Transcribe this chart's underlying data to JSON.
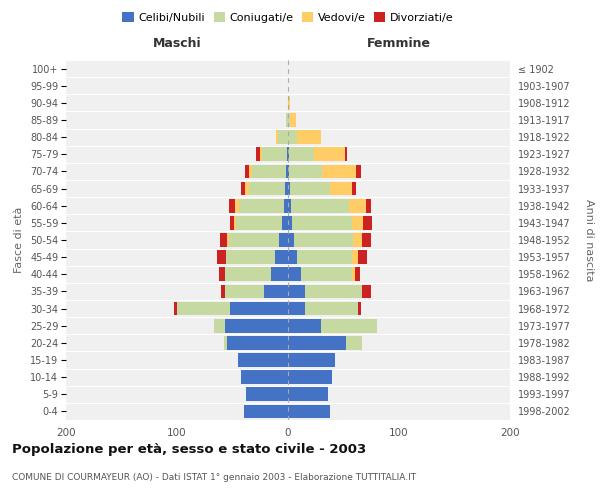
{
  "age_groups": [
    "0-4",
    "5-9",
    "10-14",
    "15-19",
    "20-24",
    "25-29",
    "30-34",
    "35-39",
    "40-44",
    "45-49",
    "50-54",
    "55-59",
    "60-64",
    "65-69",
    "70-74",
    "75-79",
    "80-84",
    "85-89",
    "90-94",
    "95-99",
    "100+"
  ],
  "birth_years": [
    "1998-2002",
    "1993-1997",
    "1988-1992",
    "1983-1987",
    "1978-1982",
    "1973-1977",
    "1968-1972",
    "1963-1967",
    "1958-1962",
    "1953-1957",
    "1948-1952",
    "1943-1947",
    "1938-1942",
    "1933-1937",
    "1928-1932",
    "1923-1927",
    "1918-1922",
    "1913-1917",
    "1908-1912",
    "1903-1907",
    "≤ 1902"
  ],
  "colors": {
    "celibi": "#4472C4",
    "coniugati": "#C5D9A0",
    "vedovi": "#FFCC66",
    "divorziati": "#CC2222"
  },
  "maschi": {
    "celibi": [
      40,
      38,
      42,
      45,
      55,
      57,
      52,
      22,
      15,
      12,
      8,
      5,
      4,
      3,
      2,
      1,
      0,
      0,
      0,
      0,
      0
    ],
    "coniugati": [
      0,
      0,
      0,
      0,
      3,
      10,
      48,
      35,
      42,
      44,
      45,
      42,
      40,
      32,
      30,
      22,
      9,
      2,
      0,
      0,
      0
    ],
    "vedovi": [
      0,
      0,
      0,
      0,
      0,
      0,
      0,
      0,
      0,
      0,
      2,
      2,
      4,
      4,
      3,
      2,
      2,
      0,
      0,
      0,
      0
    ],
    "divorziati": [
      0,
      0,
      0,
      0,
      0,
      0,
      3,
      3,
      5,
      8,
      6,
      3,
      5,
      3,
      4,
      4,
      0,
      0,
      0,
      0,
      0
    ]
  },
  "femmine": {
    "nubili": [
      38,
      36,
      40,
      42,
      52,
      30,
      15,
      15,
      12,
      8,
      5,
      4,
      3,
      2,
      1,
      1,
      0,
      0,
      0,
      0,
      0
    ],
    "coniugate": [
      0,
      0,
      0,
      0,
      15,
      50,
      48,
      52,
      46,
      50,
      54,
      54,
      52,
      36,
      30,
      22,
      8,
      2,
      0,
      0,
      0
    ],
    "vedove": [
      0,
      0,
      0,
      0,
      0,
      0,
      0,
      0,
      2,
      5,
      8,
      10,
      15,
      20,
      30,
      28,
      22,
      5,
      2,
      0,
      0
    ],
    "divorziate": [
      0,
      0,
      0,
      0,
      0,
      0,
      3,
      8,
      5,
      8,
      8,
      8,
      5,
      3,
      5,
      2,
      0,
      0,
      0,
      0,
      0
    ]
  },
  "xlim": 200,
  "title": "Popolazione per età, sesso e stato civile - 2003",
  "subtitle": "COMUNE DI COURMAYEUR (AO) - Dati ISTAT 1° gennaio 2003 - Elaborazione TUTTITALIA.IT",
  "xlabel_left": "Maschi",
  "xlabel_right": "Femmine",
  "ylabel_left": "Fasce di età",
  "ylabel_right": "Anni di nascita",
  "bg_color": "#f0f0f0"
}
